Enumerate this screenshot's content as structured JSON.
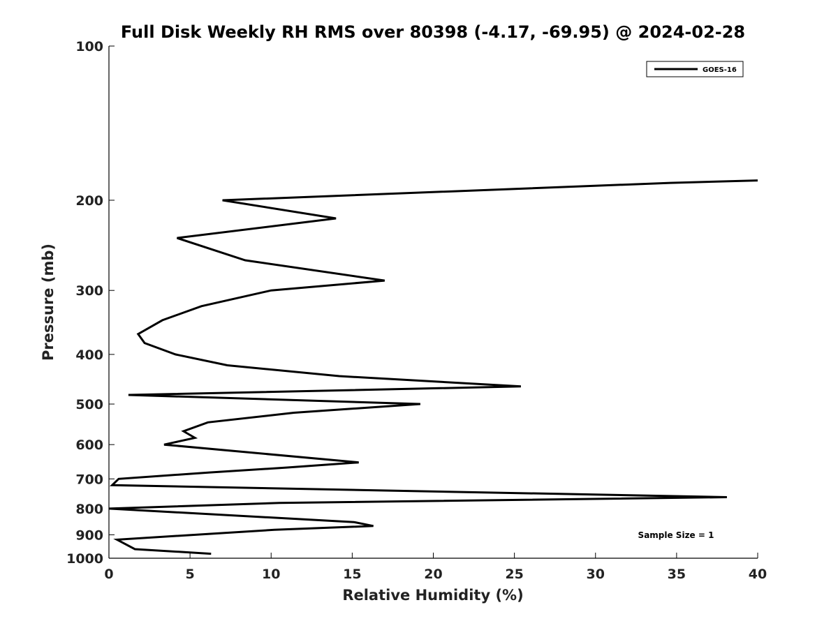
{
  "chart_data": {
    "type": "line",
    "title": "Full Disk Weekly RH RMS over 80398 (-4.17, -69.95) @ 2024-02-28",
    "xlabel": "Relative Humidity (%)",
    "ylabel": "Pressure (mb)",
    "xlim": [
      0,
      40
    ],
    "ylim": [
      100,
      1000
    ],
    "y_scale": "log",
    "y_reversed": true,
    "x_ticks": [
      0,
      5,
      10,
      15,
      20,
      25,
      30,
      35,
      40
    ],
    "y_ticks": [
      100,
      200,
      300,
      400,
      500,
      600,
      700,
      800,
      900,
      1000
    ],
    "grid": false,
    "legend_position": "top-right",
    "annotation": "Sample Size = 1",
    "series": [
      {
        "name": "GOES-16",
        "color": "#000000",
        "points": [
          [
            40.0,
            183
          ],
          [
            34.6,
            185
          ],
          [
            7.0,
            200
          ],
          [
            14.0,
            217
          ],
          [
            4.2,
            237
          ],
          [
            8.4,
            262
          ],
          [
            17.0,
            287
          ],
          [
            10.0,
            300
          ],
          [
            5.7,
            322
          ],
          [
            3.3,
            343
          ],
          [
            1.8,
            365
          ],
          [
            2.2,
            380
          ],
          [
            4.1,
            400
          ],
          [
            7.3,
            420
          ],
          [
            14.2,
            441
          ],
          [
            25.4,
            462
          ],
          [
            1.2,
            480
          ],
          [
            19.2,
            500
          ],
          [
            11.4,
            520
          ],
          [
            6.1,
            543
          ],
          [
            4.6,
            565
          ],
          [
            5.3,
            582
          ],
          [
            3.4,
            600
          ],
          [
            15.4,
            650
          ],
          [
            11.0,
            665
          ],
          [
            6.2,
            680
          ],
          [
            0.6,
            700
          ],
          [
            0.2,
            720
          ],
          [
            38.1,
            760
          ],
          [
            10.5,
            780
          ],
          [
            0.0,
            800
          ],
          [
            15.1,
            850
          ],
          [
            16.3,
            865
          ],
          [
            10.2,
            880
          ],
          [
            0.5,
            920
          ],
          [
            1.6,
            960
          ],
          [
            6.3,
            980
          ]
        ]
      }
    ]
  }
}
